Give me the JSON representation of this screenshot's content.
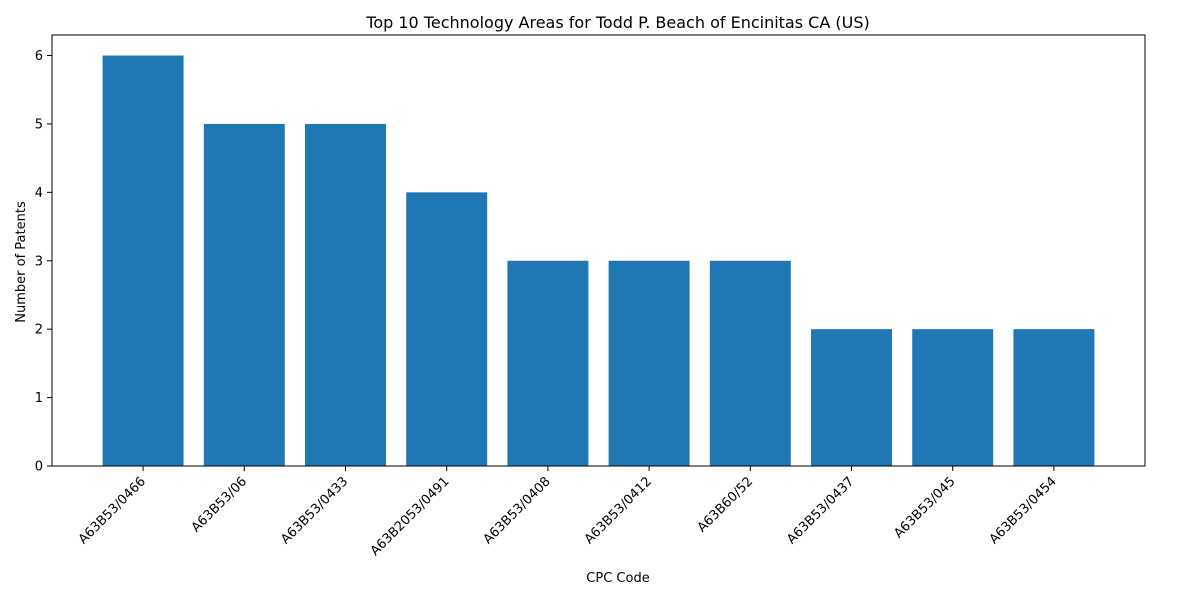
{
  "chart_data": {
    "type": "bar",
    "title": "Top 10 Technology Areas for Todd P. Beach of Encinitas CA (US)",
    "xlabel": "CPC Code",
    "ylabel": "Number of Patents",
    "categories": [
      "A63B53/0466",
      "A63B53/06",
      "A63B53/0433",
      "A63B2053/0491",
      "A63B53/0408",
      "A63B53/0412",
      "A63B60/52",
      "A63B53/0437",
      "A63B53/045",
      "A63B53/0454"
    ],
    "values": [
      6,
      5,
      5,
      4,
      3,
      3,
      3,
      2,
      2,
      2
    ],
    "ylim": [
      0,
      6.3
    ],
    "yticks": [
      0,
      1,
      2,
      3,
      4,
      5,
      6
    ],
    "grid": false,
    "legend": "none",
    "bar_color": "#1f77b4",
    "axis_color": "#000000"
  }
}
